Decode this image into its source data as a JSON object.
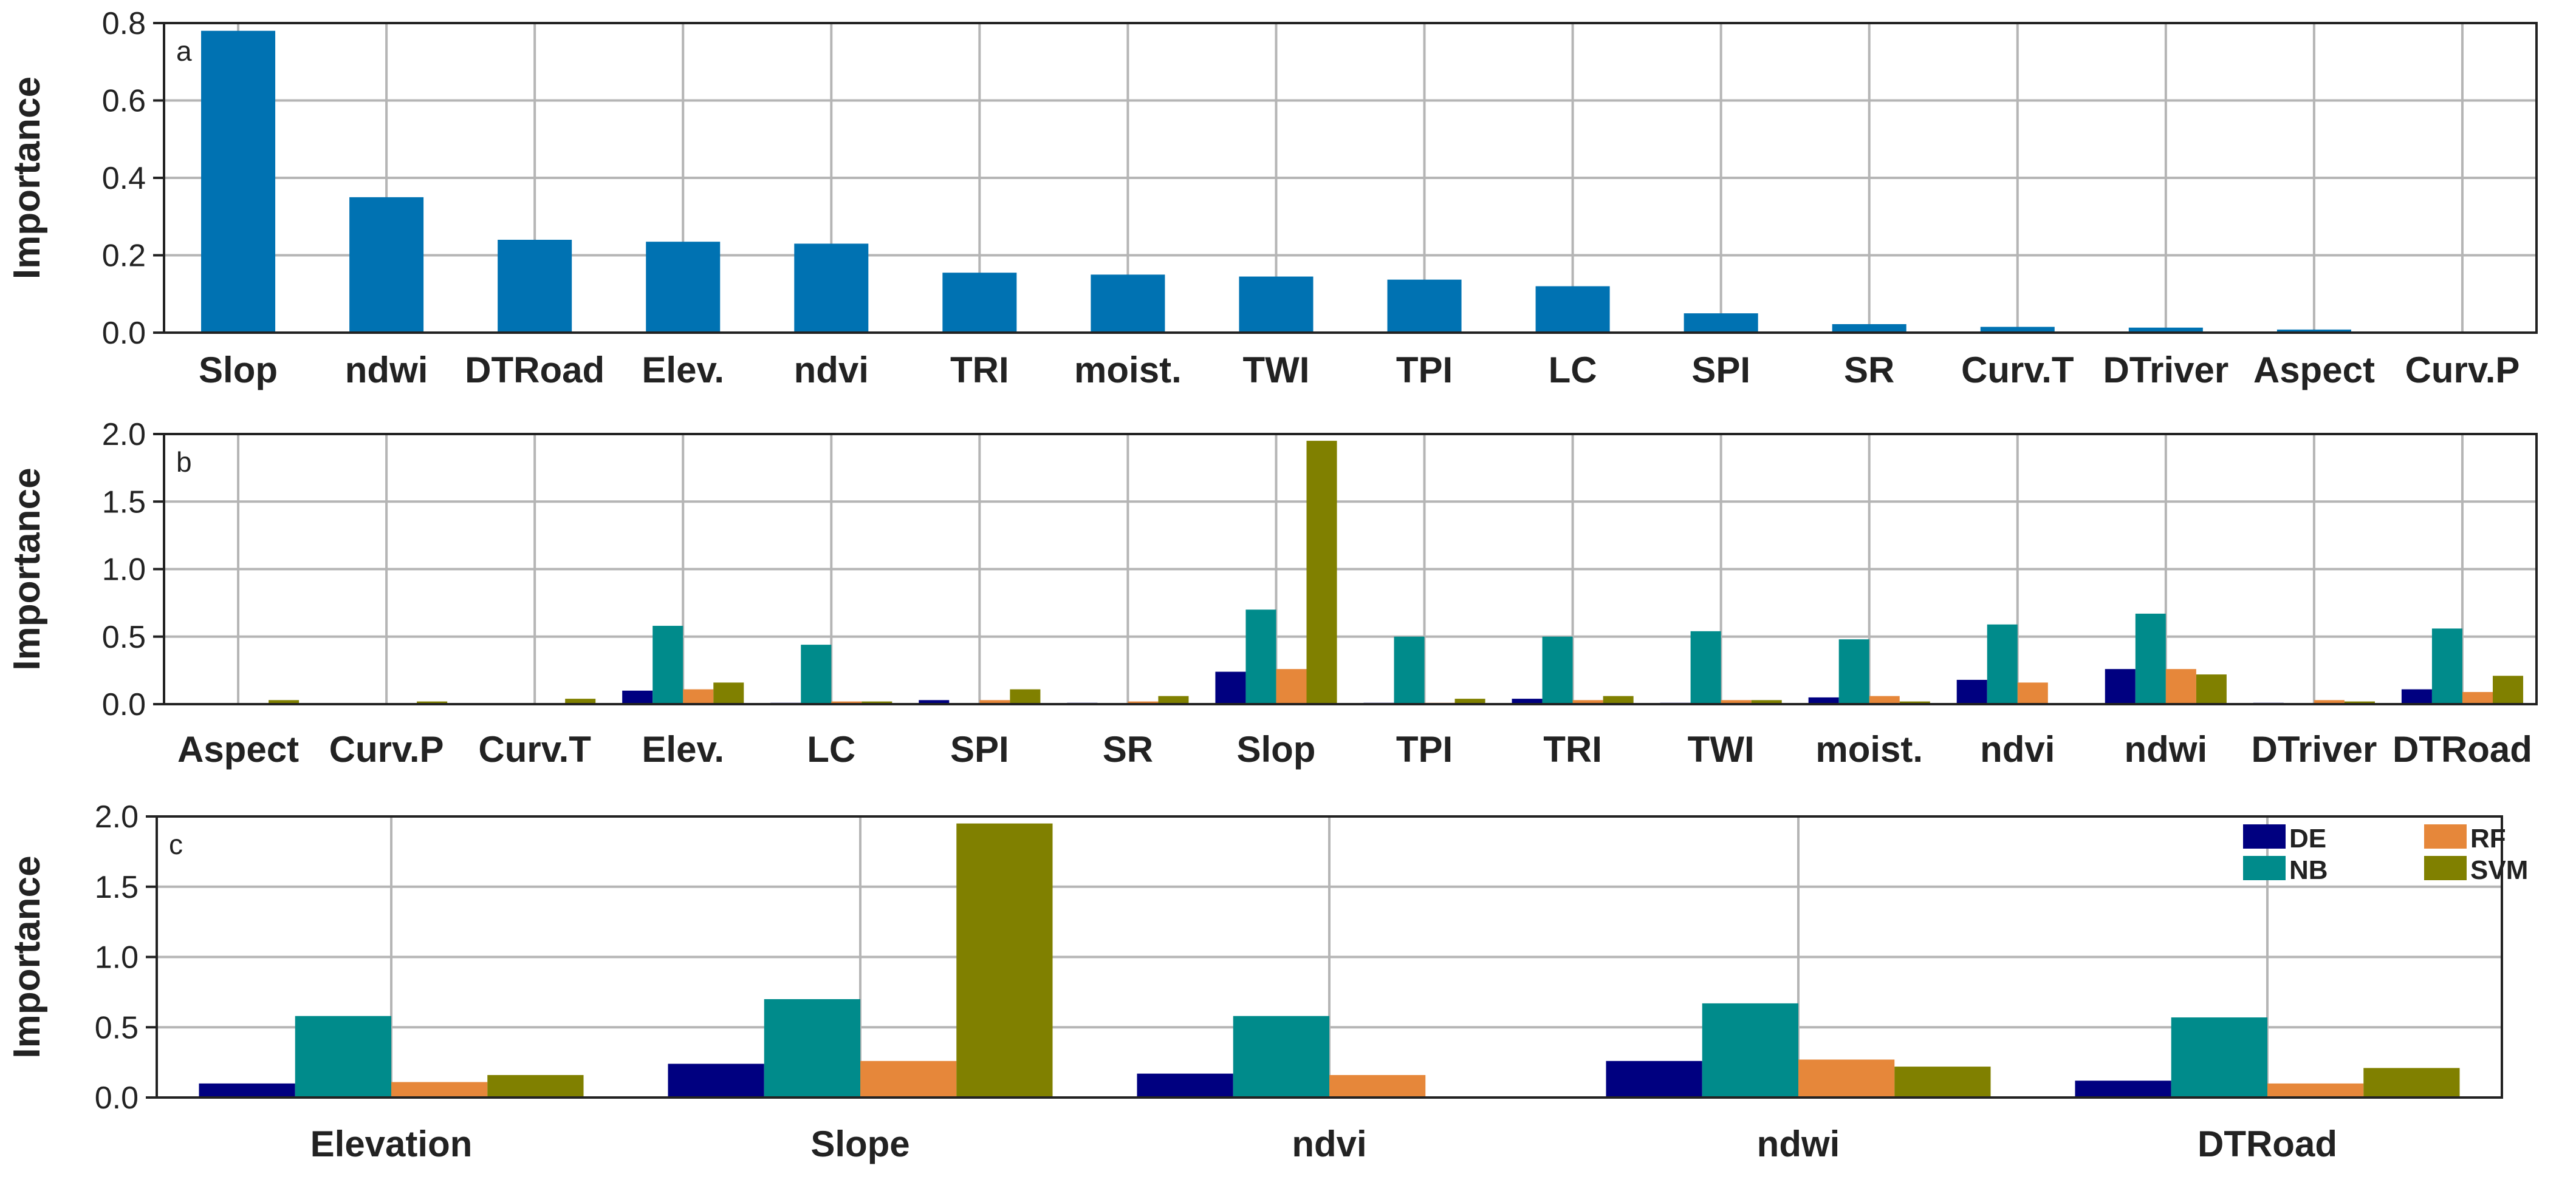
{
  "colors": {
    "importance_blue": "#0072b2",
    "DE": "#000080",
    "NB": "#008b8b",
    "RF": "#e6873a",
    "SVM": "#808000"
  },
  "chart_data": [
    {
      "type": "bar",
      "panel": "a",
      "ylabel": "Importance",
      "ylim": [
        0,
        0.8
      ],
      "yticks": [
        0.0,
        0.2,
        0.4,
        0.6,
        0.8
      ],
      "ytick_labels": [
        "0.0",
        "0.2",
        "0.4",
        "0.6",
        "0.8"
      ],
      "grid": true,
      "categories": [
        "Slop",
        "ndwi",
        "DTRoad",
        "Elev.",
        "ndvi",
        "TRI",
        "moist.",
        "TWI",
        "TPI",
        "LC",
        "SPI",
        "SR",
        "Curv.T",
        "DTriver",
        "Aspect",
        "Curv.P"
      ],
      "values": [
        0.78,
        0.35,
        0.24,
        0.235,
        0.23,
        0.155,
        0.15,
        0.145,
        0.137,
        0.12,
        0.05,
        0.022,
        0.015,
        0.013,
        0.008,
        0.0
      ]
    },
    {
      "type": "bar",
      "panel": "b",
      "ylabel": "Importance",
      "ylim": [
        0,
        2.0
      ],
      "yticks": [
        0.0,
        0.5,
        1.0,
        1.5,
        2.0
      ],
      "ytick_labels": [
        "0.0",
        "0.5",
        "1.0",
        "1.5",
        "2.0"
      ],
      "grid": true,
      "categories": [
        "Aspect",
        "Curv.P",
        "Curv.T",
        "Elev.",
        "LC",
        "SPI",
        "SR",
        "Slop",
        "TPI",
        "TRI",
        "TWI",
        "moist.",
        "ndvi",
        "ndwi",
        "DTriver",
        "DTRoad"
      ],
      "series": [
        {
          "name": "DE",
          "values": [
            0.0,
            0.0,
            0.0,
            0.1,
            0.01,
            0.03,
            0.01,
            0.24,
            0.01,
            0.04,
            0.01,
            0.05,
            0.18,
            0.26,
            0.01,
            0.11
          ]
        },
        {
          "name": "NB",
          "values": [
            0.0,
            0.0,
            0.0,
            0.58,
            0.44,
            0.0,
            0.0,
            0.7,
            0.5,
            0.5,
            0.54,
            0.48,
            0.59,
            0.67,
            0.0,
            0.56
          ]
        },
        {
          "name": "RF",
          "values": [
            0.0,
            0.0,
            0.0,
            0.11,
            0.02,
            0.03,
            0.02,
            0.26,
            0.01,
            0.03,
            0.03,
            0.06,
            0.16,
            0.26,
            0.03,
            0.09
          ]
        },
        {
          "name": "SVM",
          "values": [
            0.03,
            0.02,
            0.04,
            0.16,
            0.02,
            0.11,
            0.06,
            1.95,
            0.04,
            0.06,
            0.03,
            0.02,
            0.0,
            0.22,
            0.02,
            0.21
          ]
        }
      ]
    },
    {
      "type": "bar",
      "panel": "c",
      "ylabel": "Importance",
      "ylim": [
        0,
        2.0
      ],
      "yticks": [
        0.0,
        0.5,
        1.0,
        1.5,
        2.0
      ],
      "ytick_labels": [
        "0.0",
        "0.5",
        "1.0",
        "1.5",
        "2.0"
      ],
      "grid": true,
      "legend": "top-right",
      "categories": [
        "Elevation",
        "Slope",
        "ndvi",
        "ndwi",
        "DTRoad"
      ],
      "series": [
        {
          "name": "DE",
          "values": [
            0.1,
            0.24,
            0.17,
            0.26,
            0.12
          ]
        },
        {
          "name": "NB",
          "values": [
            0.58,
            0.7,
            0.58,
            0.67,
            0.57
          ]
        },
        {
          "name": "RF",
          "values": [
            0.11,
            0.26,
            0.16,
            0.27,
            0.1
          ]
        },
        {
          "name": "SVM",
          "values": [
            0.16,
            1.95,
            0.0,
            0.22,
            0.21
          ]
        }
      ]
    }
  ]
}
